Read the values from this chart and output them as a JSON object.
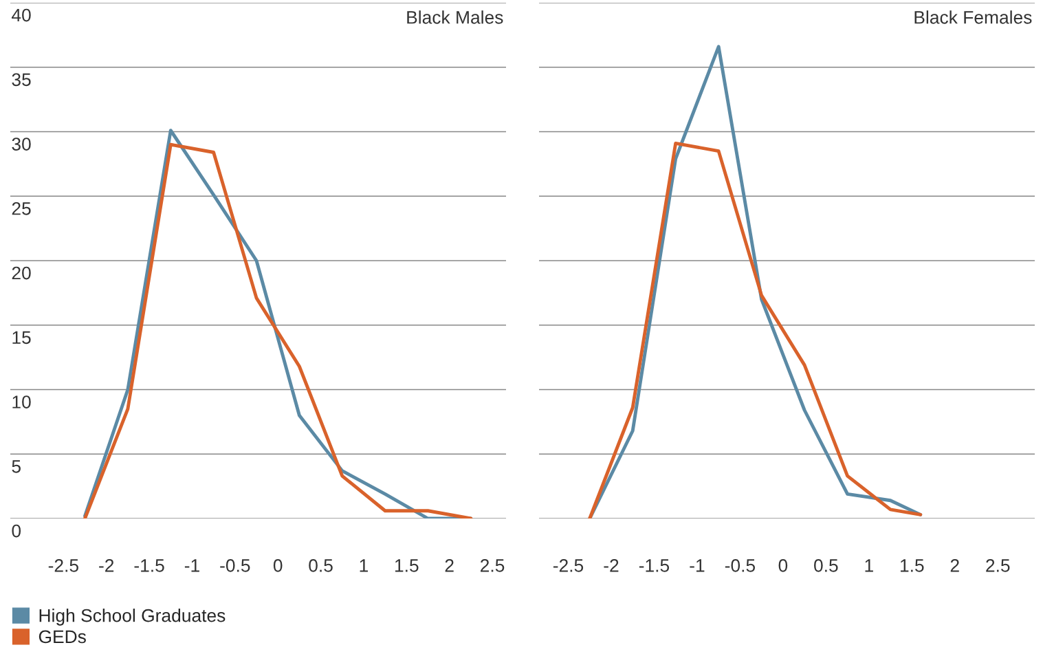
{
  "chart_data": [
    {
      "type": "line",
      "title": "Black Males",
      "x": [
        -2.25,
        -1.75,
        -1.25,
        -0.75,
        -0.25,
        0.25,
        0.75,
        1.25,
        1.75,
        2.25
      ],
      "series": [
        {
          "name": "High School Graduates",
          "color": "#5b8aa5",
          "values": [
            0.2,
            10.0,
            30.1,
            25.1,
            20.0,
            8.0,
            3.7,
            1.9,
            0,
            0
          ]
        },
        {
          "name": "GEDs",
          "color": "#d9622b",
          "values": [
            0,
            8.5,
            29.0,
            28.4,
            17.1,
            11.8,
            3.3,
            0.6,
            0.6,
            0
          ]
        }
      ],
      "xlim": [
        -3.12,
        2.66
      ],
      "xticks": [
        -2.5,
        -2,
        -1.5,
        -1,
        -0.5,
        0,
        0.5,
        1,
        1.5,
        2,
        2.5
      ],
      "ylim": [
        0,
        40
      ],
      "yticks": [
        0,
        5,
        10,
        15,
        20,
        25,
        30,
        35,
        40
      ],
      "grid": "y",
      "legend": "bottom left"
    },
    {
      "type": "line",
      "title": "Black Females",
      "series": [
        {
          "color": "#5b8aa5",
          "x": [
            -2.25,
            -1.75,
            -1.25,
            -0.75,
            -0.25,
            0.25,
            0.75,
            1.25,
            1.6
          ],
          "values": [
            0,
            6.8,
            27.9,
            36.6,
            17.0,
            8.4,
            1.9,
            1.4,
            0.3
          ]
        },
        {
          "color": "#d9622b",
          "x": [
            -2.25,
            -1.75,
            -1.25,
            -0.75,
            -0.25,
            0.25,
            0.75,
            1.25,
            1.6
          ],
          "values": [
            0,
            8.6,
            29.1,
            28.5,
            17.3,
            11.9,
            3.3,
            0.7,
            0.3
          ]
        }
      ],
      "xlim": [
        -2.84,
        2.93
      ],
      "xticks": [
        -2.5,
        -2,
        -1.5,
        -1,
        -0.5,
        0,
        0.5,
        1,
        1.5,
        2,
        2.5
      ],
      "ylim": [
        0,
        40
      ],
      "yticks": [
        0,
        5,
        10,
        15,
        20,
        25,
        30,
        35,
        40
      ],
      "grid": "y",
      "tick_labels": "x"
    }
  ]
}
